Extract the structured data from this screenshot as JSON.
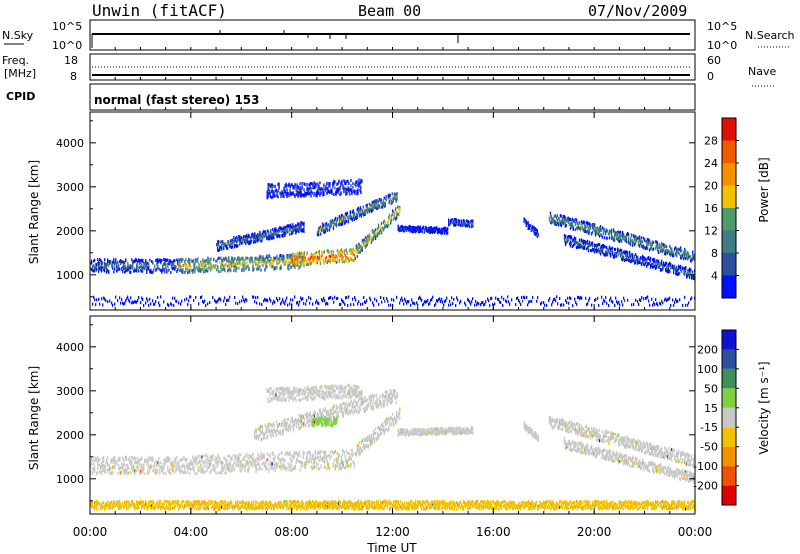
{
  "header": {
    "station": "Unwin (fitACF)",
    "beam": "Beam 00",
    "date": "07/Nov/2009"
  },
  "strips": {
    "nsky_label": "N.Sky",
    "nsky_ticks": [
      "10^5",
      "10^0"
    ],
    "nsearch_label": "N.Search",
    "nsearch_ticks": [
      "10^5",
      "10^0"
    ],
    "freq_label_1": "Freq.",
    "freq_label_2": "[MHz]",
    "freq_ticks": [
      "18",
      "8"
    ],
    "nave_label": "Nave",
    "nave_ticks": [
      "60",
      "0"
    ],
    "cpid_label": "CPID",
    "cpid_text": "normal (fast stereo) 153"
  },
  "chart_data": [
    {
      "type": "heatmap",
      "name": "power",
      "ylabel": "Slant Range [km]",
      "yticks": [
        1000,
        2000,
        3000,
        4000
      ],
      "ylim": [
        200,
        4700
      ],
      "xlim_hours": [
        0,
        24
      ],
      "colorbar_label": "Power [dB]",
      "colorbar_ticks": [
        "4",
        "8",
        "12",
        "16",
        "20",
        "24",
        "28"
      ],
      "colorbar_colors": [
        "#0010ff",
        "#2a4f9e",
        "#3f7c88",
        "#4e9a6a",
        "#f2c200",
        "#f59000",
        "#f05a00",
        "#e01000"
      ],
      "bands": [
        {
          "t0": 0.0,
          "t1": 3.5,
          "r0": 1200,
          "r1": 1200,
          "w": 300,
          "level": 2
        },
        {
          "t0": 3.5,
          "t1": 8.5,
          "r0": 1200,
          "r1": 1300,
          "w": 320,
          "level": 4
        },
        {
          "t0": 8.0,
          "t1": 10.5,
          "r0": 1350,
          "r1": 1450,
          "w": 280,
          "level": 6
        },
        {
          "t0": 10.5,
          "t1": 12.3,
          "r0": 1500,
          "r1": 2500,
          "w": 260,
          "level": 4
        },
        {
          "t0": 5.0,
          "t1": 8.5,
          "r0": 1650,
          "r1": 2100,
          "w": 220,
          "level": 2
        },
        {
          "t0": 9.0,
          "t1": 12.2,
          "r0": 2000,
          "r1": 2800,
          "w": 220,
          "level": 3
        },
        {
          "t0": 7.0,
          "t1": 10.8,
          "r0": 2900,
          "r1": 3000,
          "w": 320,
          "level": 1
        },
        {
          "t0": 12.2,
          "t1": 14.2,
          "r0": 2050,
          "r1": 2000,
          "w": 120,
          "level": 1
        },
        {
          "t0": 14.2,
          "t1": 15.2,
          "r0": 2200,
          "r1": 2150,
          "w": 140,
          "level": 2
        },
        {
          "t0": 17.2,
          "t1": 17.8,
          "r0": 2200,
          "r1": 1900,
          "w": 140,
          "level": 2
        },
        {
          "t0": 18.2,
          "t1": 24.0,
          "r0": 2300,
          "r1": 1400,
          "w": 240,
          "level": 3
        },
        {
          "t0": 18.8,
          "t1": 24.0,
          "r0": 1800,
          "r1": 1000,
          "w": 220,
          "level": 2
        },
        {
          "t0": 0.0,
          "t1": 24.0,
          "r0": 400,
          "r1": 400,
          "w": 200,
          "level": 0
        }
      ]
    },
    {
      "type": "heatmap",
      "name": "velocity",
      "ylabel": "Slant Range [km]",
      "yticks": [
        1000,
        2000,
        3000,
        4000
      ],
      "ylim": [
        200,
        4700
      ],
      "xlim_hours": [
        0,
        24
      ],
      "colorbar_label": "Velocity [m s⁻¹]",
      "colorbar_ticks": [
        "-200",
        "-100",
        "-50",
        "-15",
        "15",
        "50",
        "100",
        "200"
      ],
      "colorbar_colors": [
        "#e00000",
        "#f05000",
        "#f59000",
        "#f2c200",
        "#c8c8c8",
        "#80d040",
        "#3f8f5a",
        "#2a4f9e",
        "#1010d0"
      ],
      "bands": [
        {
          "t0": 0.0,
          "t1": 3.5,
          "r0": 1300,
          "r1": 1300,
          "w": 380,
          "level": 4
        },
        {
          "t0": 3.5,
          "t1": 10.5,
          "r0": 1300,
          "r1": 1450,
          "w": 420,
          "level": 4
        },
        {
          "t0": 10.5,
          "t1": 12.3,
          "r0": 1600,
          "r1": 2500,
          "w": 300,
          "level": 4
        },
        {
          "t0": 6.5,
          "t1": 12.2,
          "r0": 2000,
          "r1": 2900,
          "w": 320,
          "level": 4
        },
        {
          "t0": 7.0,
          "t1": 10.8,
          "r0": 2900,
          "r1": 3000,
          "w": 300,
          "level": 4
        },
        {
          "t0": 8.8,
          "t1": 9.8,
          "r0": 2300,
          "r1": 2300,
          "w": 200,
          "level": 5
        },
        {
          "t0": 12.2,
          "t1": 15.2,
          "r0": 2050,
          "r1": 2100,
          "w": 140,
          "level": 4
        },
        {
          "t0": 17.2,
          "t1": 17.8,
          "r0": 2200,
          "r1": 1900,
          "w": 140,
          "level": 4
        },
        {
          "t0": 18.2,
          "t1": 24.0,
          "r0": 2300,
          "r1": 1400,
          "w": 260,
          "level": 4
        },
        {
          "t0": 18.8,
          "t1": 24.0,
          "r0": 1800,
          "r1": 1000,
          "w": 220,
          "level": 4
        },
        {
          "t0": 0.0,
          "t1": 24.0,
          "r0": 400,
          "r1": 400,
          "w": 180,
          "level": 3
        }
      ]
    }
  ],
  "xaxis": {
    "label": "Time UT",
    "ticks": [
      "00:00",
      "04:00",
      "08:00",
      "12:00",
      "16:00",
      "20:00",
      "00:00"
    ]
  }
}
